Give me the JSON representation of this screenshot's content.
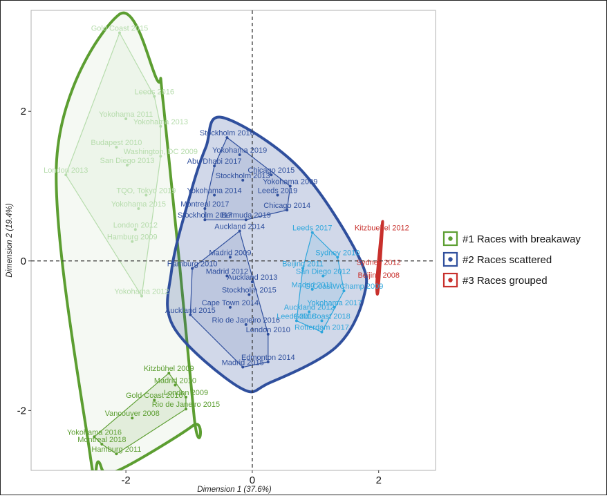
{
  "chart_data": {
    "type": "scatter",
    "xlabel": "Dimension 1 (37.6%)",
    "ylabel": "Dimension 2 (19.4%)",
    "xlim": [
      -3.5,
      2.9
    ],
    "ylim": [
      -2.8,
      3.35
    ],
    "xticks": [
      -2,
      0,
      2
    ],
    "yticks": [
      2,
      0,
      -2
    ],
    "grid": false,
    "reference_lines": {
      "x": 0,
      "y": 0
    },
    "legend_position": "right",
    "legend": [
      {
        "label": "#1 Races with breakaway",
        "color": "#5c9e31"
      },
      {
        "label": "#2 Races scattered",
        "color": "#2f4f9d"
      },
      {
        "label": "#3 Races grouped",
        "color": "#c8302c"
      }
    ],
    "series": [
      {
        "name": "#1 Races with breakaway",
        "color": "#5c9e31",
        "subgroups": [
          {
            "color": "#b6dcac",
            "points": [
              {
                "label": "Gold Coast 2015",
                "x": -2.1,
                "y": 3.05
              },
              {
                "label": "Leeds 2016",
                "x": -1.55,
                "y": 2.2
              },
              {
                "label": "Yokohama 2011",
                "x": -2.0,
                "y": 1.9
              },
              {
                "label": "Yokohama 2013",
                "x": -1.45,
                "y": 1.8
              },
              {
                "label": "Budapest 2010",
                "x": -2.15,
                "y": 1.52
              },
              {
                "label": "Washington, DC 2009",
                "x": -1.45,
                "y": 1.4
              },
              {
                "label": "San Diego 2013",
                "x": -1.98,
                "y": 1.28
              },
              {
                "label": "London 2013",
                "x": -2.95,
                "y": 1.15
              },
              {
                "label": "TQO, Tokyo 2019",
                "x": -1.68,
                "y": 0.88
              },
              {
                "label": "Yokohama 2015",
                "x": -1.8,
                "y": 0.7
              },
              {
                "label": "London 2012",
                "x": -1.85,
                "y": 0.42
              },
              {
                "label": "Hamburg 2009",
                "x": -1.9,
                "y": 0.26
              },
              {
                "label": "Yokohama 2012",
                "x": -1.75,
                "y": -0.47
              }
            ]
          },
          {
            "color": "#5c9e31",
            "points": [
              {
                "label": "Kitzbühel 2009",
                "x": -1.32,
                "y": -1.5
              },
              {
                "label": "Madrid 2010",
                "x": -1.22,
                "y": -1.66
              },
              {
                "label": "London 2009",
                "x": -1.05,
                "y": -1.82
              },
              {
                "label": "Gold Coast 2016",
                "x": -1.55,
                "y": -1.86
              },
              {
                "label": "Rio de Janeiro 2015",
                "x": -1.05,
                "y": -1.98
              },
              {
                "label": "Vancouver 2008",
                "x": -1.9,
                "y": -2.1
              },
              {
                "label": "Yokohama 2016",
                "x": -2.5,
                "y": -2.35
              },
              {
                "label": "Montreal 2018",
                "x": -2.38,
                "y": -2.45
              },
              {
                "label": "Hamburg 2011",
                "x": -2.15,
                "y": -2.58
              }
            ]
          }
        ]
      },
      {
        "name": "#2 Races scattered",
        "color": "#2f4f9d",
        "subgroups": [
          {
            "color": "#2f4f9d",
            "points": [
              {
                "label": "Stockholm 2016",
                "x": -0.4,
                "y": 1.65
              },
              {
                "label": "Yokohama 2019",
                "x": -0.2,
                "y": 1.42
              },
              {
                "label": "Abu Dhabi 2017",
                "x": -0.6,
                "y": 1.27
              },
              {
                "label": "Chicago 2015",
                "x": 0.3,
                "y": 1.15
              },
              {
                "label": "Stockholm 2013",
                "x": -0.15,
                "y": 1.08
              },
              {
                "label": "Yokohama 2009",
                "x": 0.6,
                "y": 1.0
              },
              {
                "label": "Yokohama 2014",
                "x": -0.6,
                "y": 0.88
              },
              {
                "label": "Leeds 2019",
                "x": 0.4,
                "y": 0.88
              },
              {
                "label": "Montreal 2017",
                "x": -0.75,
                "y": 0.7
              },
              {
                "label": "Chicago 2014",
                "x": 0.55,
                "y": 0.68
              },
              {
                "label": "Bermuda 2019",
                "x": -0.1,
                "y": 0.55
              },
              {
                "label": "Stockholm 2017",
                "x": -0.75,
                "y": 0.55
              }
            ]
          },
          {
            "color": "#2f4f9d",
            "points": [
              {
                "label": "Auckland 2014",
                "x": -0.2,
                "y": 0.4
              },
              {
                "label": "Madrid 2009",
                "x": -0.35,
                "y": 0.05
              },
              {
                "label": "Hamburg 2010",
                "x": -0.95,
                "y": -0.1
              },
              {
                "label": "Madrid 2012",
                "x": -0.4,
                "y": -0.2
              },
              {
                "label": "Auckland 2013",
                "x": 0.0,
                "y": -0.28
              },
              {
                "label": "Stockholm 2015",
                "x": -0.05,
                "y": -0.45
              },
              {
                "label": "Cape Town 2014",
                "x": -0.35,
                "y": -0.62
              },
              {
                "label": "Auckland 2015",
                "x": -0.98,
                "y": -0.72
              },
              {
                "label": "Rio de Janeiro 2016",
                "x": -0.1,
                "y": -0.85
              },
              {
                "label": "London 2010",
                "x": 0.25,
                "y": -0.98
              },
              {
                "label": "Madrid 2015",
                "x": -0.15,
                "y": -1.42
              },
              {
                "label": "Edmonton 2014",
                "x": 0.25,
                "y": -1.35
              }
            ]
          },
          {
            "color": "#2ea6dc",
            "points": [
              {
                "label": "Leeds 2017",
                "x": 0.95,
                "y": 0.38
              },
              {
                "label": "Sydney 2010",
                "x": 1.35,
                "y": 0.05
              },
              {
                "label": "Beijing 2011",
                "x": 0.8,
                "y": -0.1
              },
              {
                "label": "San Diego 2012",
                "x": 1.12,
                "y": -0.2
              },
              {
                "label": "Madrid 2011",
                "x": 0.95,
                "y": -0.38
              },
              {
                "label": "G.CoastWChamp 2009",
                "x": 1.45,
                "y": -0.4
              },
              {
                "label": "Yokohama 2017",
                "x": 1.3,
                "y": -0.62
              },
              {
                "label": "Auckland 2012",
                "x": 0.9,
                "y": -0.68
              },
              {
                "label": "Gold Coast 2018",
                "x": 1.1,
                "y": -0.8
              },
              {
                "label": "Leeds 2018",
                "x": 0.7,
                "y": -0.8
              },
              {
                "label": "Rotterdam 2017",
                "x": 1.1,
                "y": -0.95
              }
            ]
          }
        ]
      },
      {
        "name": "#3 Races grouped",
        "color": "#c8302c",
        "subgroups": [
          {
            "color": "#c8302c",
            "points": [
              {
                "label": "Kitzbuehel 2012",
                "x": 2.05,
                "y": 0.38
              },
              {
                "label": "Sydney 2012",
                "x": 2.0,
                "y": -0.08
              },
              {
                "label": "Beijing 2008",
                "x": 2.0,
                "y": -0.25
              }
            ]
          }
        ]
      }
    ]
  }
}
